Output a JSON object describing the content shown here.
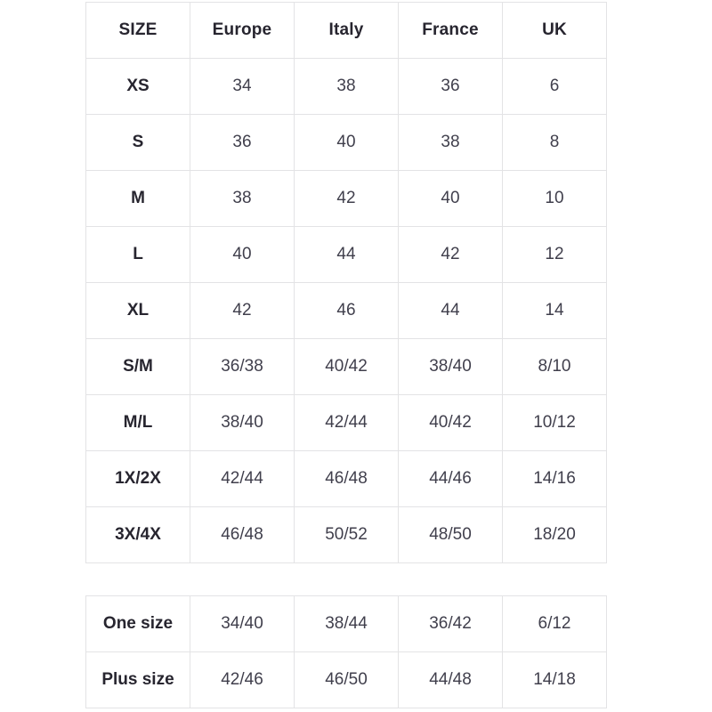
{
  "colors": {
    "background": "#ffffff",
    "border": "#e3e3e5",
    "label_text": "#27252f",
    "value_text": "#403f4c"
  },
  "main_table": {
    "headers": [
      "SIZE",
      "Europe",
      "Italy",
      "France",
      "UK"
    ],
    "rows": [
      [
        "XS",
        "34",
        "38",
        "36",
        "6"
      ],
      [
        "S",
        "36",
        "40",
        "38",
        "8"
      ],
      [
        "M",
        "38",
        "42",
        "40",
        "10"
      ],
      [
        "L",
        "40",
        "44",
        "42",
        "12"
      ],
      [
        "XL",
        "42",
        "46",
        "44",
        "14"
      ],
      [
        "S/M",
        "36/38",
        "40/42",
        "38/40",
        "8/10"
      ],
      [
        "M/L",
        "38/40",
        "42/44",
        "40/42",
        "10/12"
      ],
      [
        "1X/2X",
        "42/44",
        "46/48",
        "44/46",
        "14/16"
      ],
      [
        "3X/4X",
        "46/48",
        "50/52",
        "48/50",
        "18/20"
      ]
    ]
  },
  "extra_table": {
    "rows": [
      [
        "One size",
        "34/40",
        "38/44",
        "36/42",
        "6/12"
      ],
      [
        "Plus size",
        "42/46",
        "46/50",
        "44/48",
        "14/18"
      ]
    ]
  }
}
